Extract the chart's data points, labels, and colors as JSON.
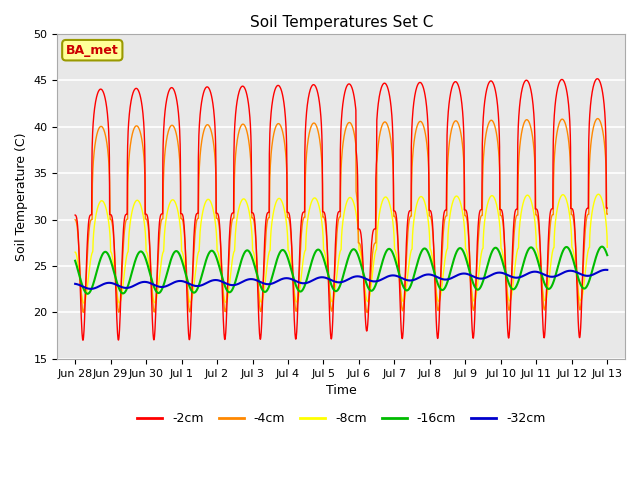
{
  "title": "Soil Temperatures Set C",
  "xlabel": "Time",
  "ylabel": "Soil Temperature (C)",
  "ylim": [
    15,
    50
  ],
  "background_color": "#ffffff",
  "plot_bg_color": "#e8e8e8",
  "grid_color": "#ffffff",
  "legend_labels": [
    "-2cm",
    "-4cm",
    "-8cm",
    "-16cm",
    "-32cm"
  ],
  "legend_colors": [
    "#ff0000",
    "#ff8800",
    "#ffff00",
    "#00bb00",
    "#0000cc"
  ],
  "annotation_text": "BA_met",
  "annotation_bg": "#ffff99",
  "annotation_border": "#999900",
  "tick_labels": [
    "Jun 28",
    "Jun 29",
    "Jun 30",
    "Jul 1",
    "Jul 2",
    "Jul 3",
    "Jul 4",
    "Jul 5",
    "Jul 6",
    "Jul 7",
    "Jul 8",
    "Jul 9",
    "Jul 10",
    "Jul 11",
    "Jul 12",
    "Jul 13"
  ],
  "tick_positions": [
    0,
    1,
    2,
    3,
    4,
    5,
    6,
    7,
    8,
    9,
    10,
    11,
    12,
    13,
    14,
    15
  ],
  "yticks": [
    15,
    20,
    25,
    30,
    35,
    40,
    45,
    50
  ]
}
